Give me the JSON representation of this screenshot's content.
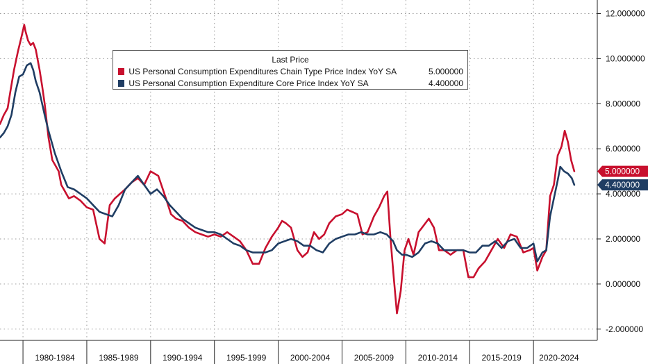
{
  "chart_data": {
    "type": "line",
    "legend": {
      "title": "Last Price",
      "placement": "top-center"
    },
    "y_axis": {
      "position": "right",
      "ylim": [
        -2.5,
        12.6
      ],
      "ticks": [
        -2,
        0,
        2,
        4,
        6,
        8,
        10,
        12
      ],
      "tick_labels": [
        "-2.000000",
        "0.000000",
        "2.000000",
        "4.000000",
        "6.000000",
        "8.000000",
        "10.000000",
        "12.000000"
      ]
    },
    "x_axis": {
      "xlim": [
        1978.2,
        2025.0
      ],
      "tick_labels": [
        "1980-1984",
        "1985-1989",
        "1990-1994",
        "1995-1999",
        "2000-2004",
        "2005-2009",
        "2010-2014",
        "2015-2019",
        "2020-2024"
      ],
      "label_centers": [
        1982.5,
        1987.5,
        1992.5,
        1997.5,
        2002.5,
        2007.5,
        2012.5,
        2017.5,
        2022.0
      ],
      "boundaries": [
        1980.0,
        1985.0,
        1990.0,
        1995.0,
        2000.0,
        2005.0,
        2010.0,
        2015.0,
        2020.0
      ]
    },
    "grid": true,
    "series": [
      {
        "name": "US Personal Consumption Expenditures Chain Type Price Index YoY SA",
        "last_label": "5.000000",
        "last_value": 5.0,
        "color": "#c8102e",
        "x": [
          1978.2,
          1978.5,
          1978.8,
          1979.0,
          1979.3,
          1979.6,
          1979.9,
          1980.1,
          1980.2,
          1980.4,
          1980.6,
          1980.8,
          1981.0,
          1981.3,
          1981.5,
          1981.7,
          1982.0,
          1982.3,
          1982.5,
          1982.8,
          1983.0,
          1983.3,
          1983.6,
          1984.0,
          1984.5,
          1985.0,
          1985.5,
          1986.0,
          1986.4,
          1986.8,
          1987.2,
          1987.6,
          1988.0,
          1988.5,
          1989.0,
          1989.5,
          1990.0,
          1990.3,
          1990.6,
          1990.9,
          1991.2,
          1991.6,
          1992.0,
          1992.5,
          1993.0,
          1993.5,
          1994.0,
          1994.5,
          1995.0,
          1995.5,
          1996.0,
          1996.5,
          1997.0,
          1997.5,
          1998.0,
          1998.5,
          1999.0,
          1999.5,
          2000.0,
          2000.3,
          2000.6,
          2001.0,
          2001.5,
          2001.9,
          2002.3,
          2002.8,
          2003.2,
          2003.6,
          2004.0,
          2004.5,
          2005.0,
          2005.4,
          2005.8,
          2006.2,
          2006.6,
          2007.0,
          2007.5,
          2007.9,
          2008.3,
          2008.55,
          2008.8,
          2009.05,
          2009.3,
          2009.6,
          2009.9,
          2010.2,
          2010.6,
          2011.0,
          2011.4,
          2011.8,
          2012.2,
          2012.6,
          2013.0,
          2013.5,
          2014.0,
          2014.5,
          2014.9,
          2015.3,
          2015.7,
          2016.2,
          2016.7,
          2017.2,
          2017.7,
          2018.2,
          2018.7,
          2019.2,
          2019.7,
          2020.0,
          2020.3,
          2020.7,
          2021.0,
          2021.3,
          2021.6,
          2021.9,
          2022.2,
          2022.45,
          2022.7,
          2022.95,
          2023.2
        ],
        "y": [
          7.1,
          7.5,
          7.8,
          8.5,
          9.5,
          10.3,
          11.0,
          11.5,
          11.2,
          10.8,
          10.6,
          10.7,
          10.4,
          9.5,
          8.8,
          8.0,
          6.5,
          5.5,
          5.3,
          5.0,
          4.4,
          4.1,
          3.8,
          3.9,
          3.7,
          3.4,
          3.3,
          2.0,
          1.8,
          3.5,
          3.8,
          4.0,
          4.2,
          4.5,
          4.7,
          4.4,
          5.0,
          4.9,
          4.8,
          4.3,
          3.8,
          3.1,
          2.9,
          2.8,
          2.5,
          2.3,
          2.2,
          2.1,
          2.2,
          2.1,
          2.3,
          2.1,
          1.9,
          1.5,
          0.9,
          0.9,
          1.6,
          2.1,
          2.5,
          2.8,
          2.7,
          2.5,
          1.5,
          1.2,
          1.4,
          2.3,
          2.0,
          2.2,
          2.7,
          3.0,
          3.1,
          3.3,
          3.2,
          3.1,
          2.2,
          2.3,
          3.0,
          3.4,
          3.9,
          4.1,
          2.0,
          0.3,
          -1.3,
          -0.3,
          1.5,
          2.0,
          1.3,
          2.3,
          2.6,
          2.9,
          2.5,
          1.5,
          1.5,
          1.3,
          1.5,
          1.5,
          0.3,
          0.3,
          0.7,
          1.0,
          1.5,
          2.0,
          1.6,
          2.2,
          2.1,
          1.4,
          1.5,
          1.6,
          0.6,
          1.2,
          1.5,
          3.9,
          4.4,
          5.7,
          6.1,
          6.8,
          6.3,
          5.5,
          5.0
        ]
      },
      {
        "name": "US Personal Consumption Expenditure Core Price Index YoY SA",
        "last_label": "4.400000",
        "last_value": 4.4,
        "color": "#1f3d63",
        "x": [
          1978.2,
          1978.5,
          1978.8,
          1979.1,
          1979.4,
          1979.7,
          1980.0,
          1980.3,
          1980.6,
          1980.8,
          1981.0,
          1981.3,
          1981.7,
          1982.0,
          1982.5,
          1983.0,
          1983.5,
          1984.0,
          1984.5,
          1985.0,
          1985.5,
          1986.0,
          1986.5,
          1987.0,
          1987.5,
          1988.0,
          1988.5,
          1989.0,
          1989.5,
          1990.0,
          1990.5,
          1991.0,
          1991.5,
          1992.0,
          1992.5,
          1993.0,
          1993.5,
          1994.0,
          1994.5,
          1995.0,
          1995.5,
          1996.0,
          1996.5,
          1997.0,
          1997.5,
          1998.0,
          1998.5,
          1999.0,
          1999.5,
          2000.0,
          2000.5,
          2001.0,
          2001.5,
          2002.0,
          2002.5,
          2003.0,
          2003.5,
          2004.0,
          2004.5,
          2005.0,
          2005.5,
          2006.0,
          2006.5,
          2007.0,
          2007.5,
          2008.0,
          2008.5,
          2009.0,
          2009.3,
          2009.7,
          2010.0,
          2010.5,
          2011.0,
          2011.5,
          2012.0,
          2012.5,
          2013.0,
          2013.5,
          2014.0,
          2014.5,
          2015.0,
          2015.5,
          2016.0,
          2016.5,
          2017.0,
          2017.5,
          2018.0,
          2018.5,
          2019.0,
          2019.5,
          2020.0,
          2020.3,
          2020.7,
          2021.0,
          2021.3,
          2021.6,
          2021.9,
          2022.1,
          2022.4,
          2022.7,
          2023.0,
          2023.2
        ],
        "y": [
          6.5,
          6.7,
          7.0,
          7.5,
          8.5,
          9.2,
          9.3,
          9.7,
          9.8,
          9.5,
          9.0,
          8.5,
          7.5,
          6.8,
          5.8,
          5.0,
          4.3,
          4.2,
          4.0,
          3.8,
          3.5,
          3.2,
          3.1,
          3.0,
          3.5,
          4.2,
          4.5,
          4.8,
          4.4,
          4.0,
          4.2,
          3.9,
          3.5,
          3.2,
          2.9,
          2.7,
          2.5,
          2.4,
          2.3,
          2.3,
          2.2,
          2.0,
          1.8,
          1.7,
          1.5,
          1.4,
          1.4,
          1.4,
          1.5,
          1.8,
          1.9,
          2.0,
          1.9,
          1.7,
          1.7,
          1.5,
          1.4,
          1.8,
          2.0,
          2.1,
          2.2,
          2.2,
          2.3,
          2.2,
          2.2,
          2.3,
          2.2,
          1.9,
          1.5,
          1.3,
          1.3,
          1.2,
          1.4,
          1.8,
          1.9,
          1.8,
          1.5,
          1.5,
          1.5,
          1.5,
          1.4,
          1.4,
          1.7,
          1.7,
          1.9,
          1.6,
          1.9,
          2.0,
          1.6,
          1.6,
          1.8,
          1.0,
          1.4,
          1.5,
          3.0,
          3.8,
          4.6,
          5.2,
          5.0,
          4.9,
          4.7,
          4.4
        ]
      }
    ]
  }
}
